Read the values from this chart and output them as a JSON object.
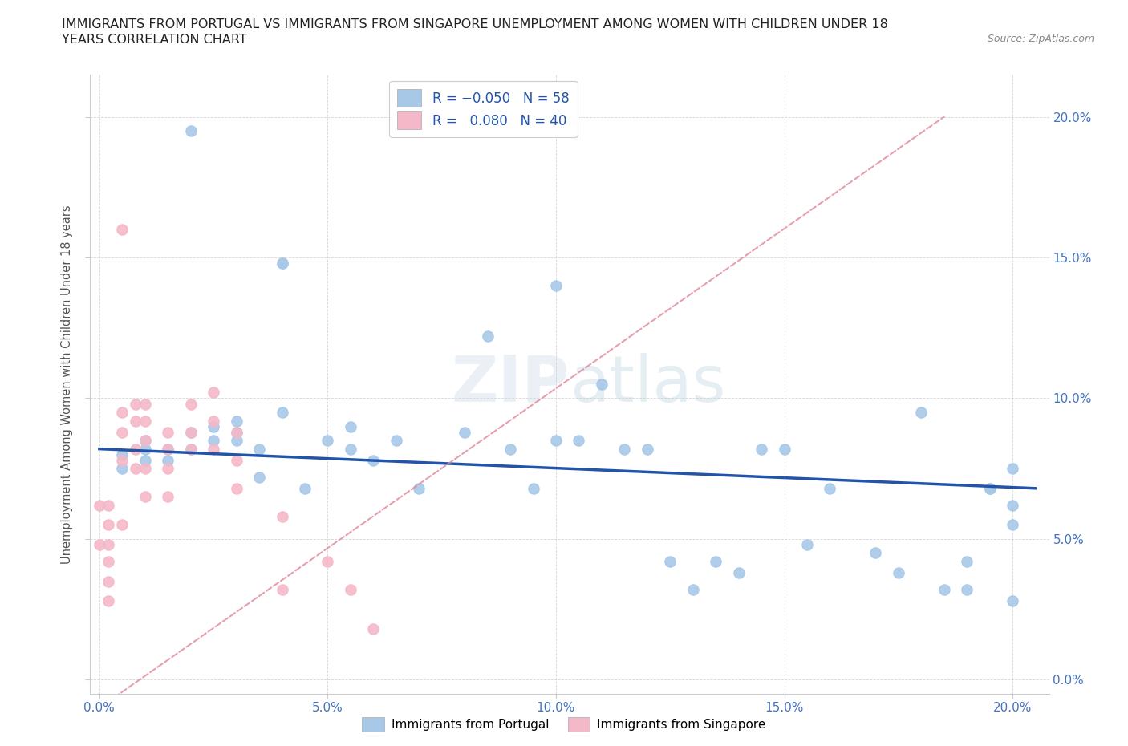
{
  "title_line1": "IMMIGRANTS FROM PORTUGAL VS IMMIGRANTS FROM SINGAPORE UNEMPLOYMENT AMONG WOMEN WITH CHILDREN UNDER 18",
  "title_line2": "YEARS CORRELATION CHART",
  "source": "Source: ZipAtlas.com",
  "ylabel": "Unemployment Among Women with Children Under 18 years",
  "x_ticks": [
    0.0,
    0.05,
    0.1,
    0.15,
    0.2
  ],
  "y_ticks": [
    0.0,
    0.05,
    0.1,
    0.15,
    0.2
  ],
  "xlim": [
    -0.002,
    0.208
  ],
  "ylim": [
    -0.005,
    0.215
  ],
  "color_portugal": "#a8c8e8",
  "color_singapore": "#f4b8c8",
  "line_color_portugal": "#2255aa",
  "line_color_singapore": "#e08898",
  "portugal_x": [
    0.02,
    0.04,
    0.04,
    0.005,
    0.005,
    0.01,
    0.01,
    0.01,
    0.015,
    0.015,
    0.02,
    0.02,
    0.025,
    0.025,
    0.03,
    0.03,
    0.03,
    0.035,
    0.035,
    0.04,
    0.045,
    0.05,
    0.055,
    0.055,
    0.06,
    0.065,
    0.07,
    0.08,
    0.085,
    0.09,
    0.095,
    0.1,
    0.1,
    0.105,
    0.11,
    0.115,
    0.12,
    0.125,
    0.13,
    0.135,
    0.14,
    0.145,
    0.15,
    0.155,
    0.16,
    0.17,
    0.175,
    0.18,
    0.185,
    0.19,
    0.195,
    0.19,
    0.195,
    0.2,
    0.2,
    0.2,
    0.2
  ],
  "portugal_y": [
    0.195,
    0.148,
    0.148,
    0.08,
    0.075,
    0.082,
    0.078,
    0.085,
    0.078,
    0.082,
    0.088,
    0.082,
    0.085,
    0.09,
    0.088,
    0.092,
    0.085,
    0.082,
    0.072,
    0.095,
    0.068,
    0.085,
    0.082,
    0.09,
    0.078,
    0.085,
    0.068,
    0.088,
    0.122,
    0.082,
    0.068,
    0.14,
    0.085,
    0.085,
    0.105,
    0.082,
    0.082,
    0.042,
    0.032,
    0.042,
    0.038,
    0.082,
    0.082,
    0.048,
    0.068,
    0.045,
    0.038,
    0.095,
    0.032,
    0.032,
    0.068,
    0.042,
    0.068,
    0.062,
    0.028,
    0.055,
    0.075
  ],
  "singapore_x": [
    0.0,
    0.0,
    0.002,
    0.002,
    0.002,
    0.002,
    0.002,
    0.002,
    0.005,
    0.005,
    0.005,
    0.005,
    0.005,
    0.008,
    0.008,
    0.008,
    0.008,
    0.01,
    0.01,
    0.01,
    0.01,
    0.01,
    0.015,
    0.015,
    0.015,
    0.015,
    0.02,
    0.02,
    0.02,
    0.025,
    0.025,
    0.025,
    0.03,
    0.03,
    0.03,
    0.04,
    0.04,
    0.05,
    0.055,
    0.06
  ],
  "singapore_y": [
    0.062,
    0.048,
    0.062,
    0.055,
    0.048,
    0.042,
    0.035,
    0.028,
    0.16,
    0.095,
    0.088,
    0.078,
    0.055,
    0.098,
    0.092,
    0.082,
    0.075,
    0.098,
    0.092,
    0.085,
    0.075,
    0.065,
    0.088,
    0.082,
    0.075,
    0.065,
    0.098,
    0.088,
    0.082,
    0.102,
    0.092,
    0.082,
    0.088,
    0.078,
    0.068,
    0.058,
    0.032,
    0.042,
    0.032,
    0.018
  ]
}
